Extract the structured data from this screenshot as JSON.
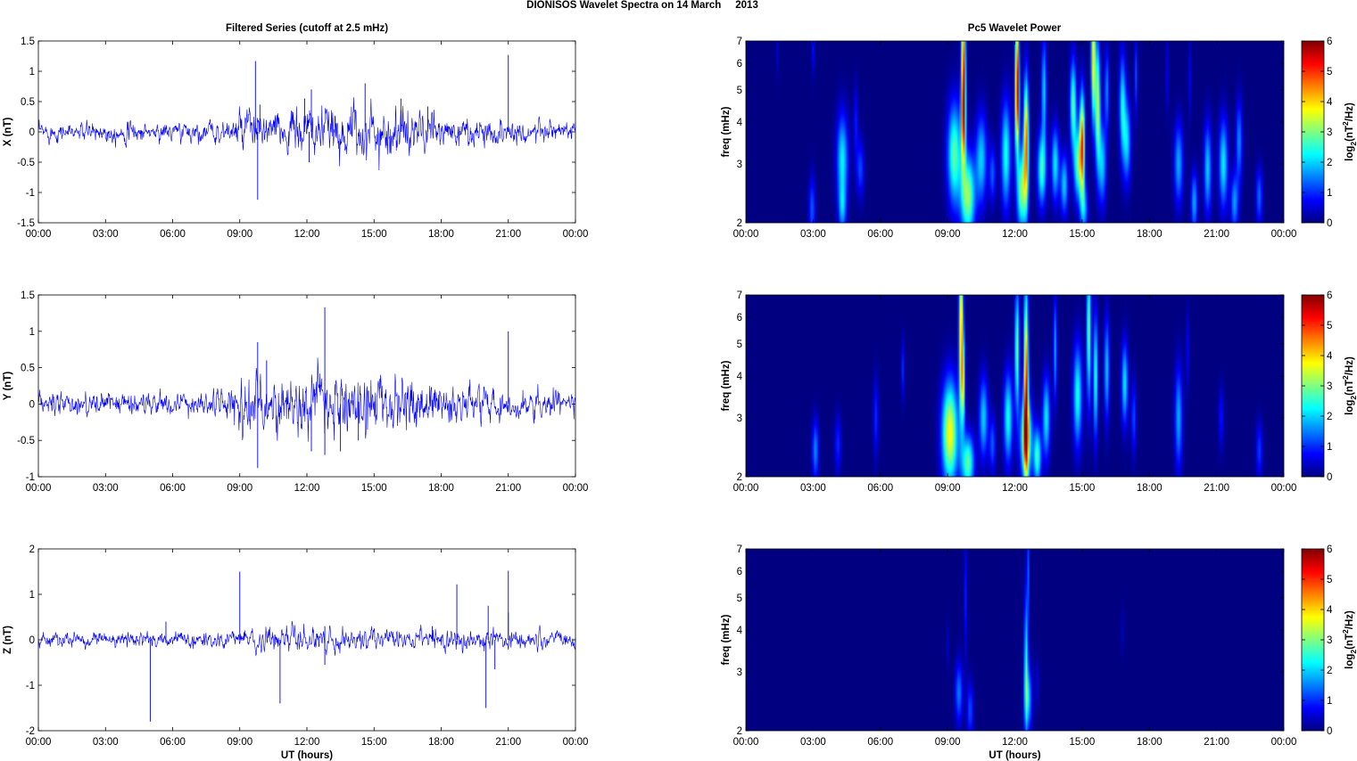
{
  "figure": {
    "title": "DIONISOS Wavelet Spectra on 14 March     2013",
    "left_title": "Filtered Series (cutoff at 2.5 mHz)",
    "right_title": "Pc5 Wavelet Power",
    "x_label": "UT (hours)",
    "freq_label": "freq (mHz)",
    "colorbar_label": "log2(nT2/Hz)"
  },
  "chart_data": [
    {
      "type": "line",
      "panel": "X",
      "ylabel": "X (nT)",
      "xlim": [
        0,
        24
      ],
      "ylim": [
        -1.5,
        1.5
      ],
      "x_ticks": [
        0,
        3,
        6,
        9,
        12,
        15,
        18,
        21,
        24
      ],
      "x_tick_labels": [
        "00:00",
        "03:00",
        "06:00",
        "09:00",
        "12:00",
        "15:00",
        "18:00",
        "21:00",
        "00:00"
      ],
      "y_ticks": [
        -1.5,
        -1,
        -0.5,
        0,
        0.5,
        1,
        1.5
      ],
      "y_tick_labels": [
        "-1.5",
        "-1",
        "-0.5",
        "0",
        "0.5",
        "1",
        "1.5"
      ],
      "color": "#0000ff",
      "noise_envelope": [
        [
          0,
          0.1
        ],
        [
          2,
          0.1
        ],
        [
          3,
          0.12
        ],
        [
          6,
          0.1
        ],
        [
          8.5,
          0.12
        ],
        [
          9.3,
          0.25
        ],
        [
          10.3,
          0.22
        ],
        [
          11,
          0.2
        ],
        [
          12,
          0.28
        ],
        [
          13,
          0.26
        ],
        [
          14.5,
          0.3
        ],
        [
          16.5,
          0.28
        ],
        [
          18,
          0.16
        ],
        [
          21,
          0.14
        ],
        [
          24,
          0.12
        ]
      ],
      "spikes": [
        [
          9.7,
          1.17
        ],
        [
          9.8,
          -1.12
        ],
        [
          9.9,
          0.45
        ],
        [
          12.2,
          0.7
        ],
        [
          12.1,
          -0.5
        ],
        [
          14.6,
          0.8
        ],
        [
          16.2,
          0.55
        ],
        [
          17.4,
          0.42
        ],
        [
          21.0,
          1.27
        ],
        [
          11.9,
          0.55
        ]
      ]
    },
    {
      "type": "line",
      "panel": "Y",
      "ylabel": "Y (nT)",
      "xlim": [
        0,
        24
      ],
      "ylim": [
        -1,
        1.5
      ],
      "x_ticks": [
        0,
        3,
        6,
        9,
        12,
        15,
        18,
        21,
        24
      ],
      "x_tick_labels": [
        "00:00",
        "03:00",
        "06:00",
        "09:00",
        "12:00",
        "15:00",
        "18:00",
        "21:00",
        "00:00"
      ],
      "y_ticks": [
        -1,
        -0.5,
        0,
        0.5,
        1,
        1.5
      ],
      "y_tick_labels": [
        "-1",
        "-0.5",
        "0",
        "0.5",
        "1",
        "1.5"
      ],
      "color": "#0000ff",
      "noise_envelope": [
        [
          0,
          0.1
        ],
        [
          2,
          0.1
        ],
        [
          3,
          0.12
        ],
        [
          6,
          0.1
        ],
        [
          8.5,
          0.14
        ],
        [
          9.3,
          0.3
        ],
        [
          10,
          0.26
        ],
        [
          11,
          0.24
        ],
        [
          12,
          0.3
        ],
        [
          13,
          0.28
        ],
        [
          14.5,
          0.28
        ],
        [
          16.5,
          0.26
        ],
        [
          18,
          0.18
        ],
        [
          21,
          0.14
        ],
        [
          24,
          0.12
        ]
      ],
      "spikes": [
        [
          9.8,
          0.85
        ],
        [
          9.8,
          -0.88
        ],
        [
          12.8,
          1.33
        ],
        [
          12.8,
          -0.7
        ],
        [
          12.2,
          -0.65
        ],
        [
          13.5,
          -0.65
        ],
        [
          14.3,
          -0.5
        ],
        [
          21.0,
          1.0
        ],
        [
          10.2,
          0.6
        ]
      ]
    },
    {
      "type": "line",
      "panel": "Z",
      "ylabel": "Z (nT)",
      "xlim": [
        0,
        24
      ],
      "ylim": [
        -2,
        2
      ],
      "x_ticks": [
        0,
        3,
        6,
        9,
        12,
        15,
        18,
        21,
        24
      ],
      "x_tick_labels": [
        "00:00",
        "03:00",
        "06:00",
        "09:00",
        "12:00",
        "15:00",
        "18:00",
        "21:00",
        "00:00"
      ],
      "y_ticks": [
        -2,
        -1,
        0,
        1,
        2
      ],
      "y_tick_labels": [
        "-2",
        "-1",
        "0",
        "1",
        "2"
      ],
      "xlabel": "UT (hours)",
      "color": "#0000ff",
      "noise_envelope": [
        [
          0,
          0.1
        ],
        [
          4,
          0.1
        ],
        [
          6,
          0.12
        ],
        [
          9,
          0.12
        ],
        [
          10,
          0.16
        ],
        [
          12,
          0.16
        ],
        [
          15,
          0.14
        ],
        [
          18,
          0.16
        ],
        [
          21,
          0.14
        ],
        [
          24,
          0.12
        ]
      ],
      "spikes": [
        [
          5.0,
          -1.8
        ],
        [
          5.7,
          0.4
        ],
        [
          9.0,
          1.5
        ],
        [
          10.8,
          -1.4
        ],
        [
          12.8,
          -0.55
        ],
        [
          12.8,
          0.3
        ],
        [
          18.7,
          1.22
        ],
        [
          20.0,
          -1.5
        ],
        [
          20.1,
          0.75
        ],
        [
          20.4,
          -0.65
        ],
        [
          21.0,
          1.52
        ],
        [
          21.0,
          0.6
        ],
        [
          17.6,
          0.3
        ]
      ]
    },
    {
      "type": "heatmap",
      "panel": "X wavelet",
      "ylabel": "freq (mHz)",
      "yscale": "log",
      "xlim": [
        0,
        24
      ],
      "ylim": [
        2,
        7
      ],
      "clim": [
        0,
        6
      ],
      "colormap": "jet",
      "x_ticks": [
        0,
        3,
        6,
        9,
        12,
        15,
        18,
        21,
        24
      ],
      "x_tick_labels": [
        "00:00",
        "03:00",
        "06:00",
        "09:00",
        "12:00",
        "15:00",
        "18:00",
        "21:00",
        "00:00"
      ],
      "y_ticks": [
        2,
        3,
        4,
        5,
        6,
        7
      ],
      "y_tick_labels": [
        "2",
        "3",
        "4",
        "5",
        "6",
        "7"
      ],
      "colorbar_ticks": [
        0,
        1,
        2,
        3,
        4,
        5,
        6
      ],
      "blobs": [
        [
          2.95,
          2.2,
          0.1,
          0.16,
          1.3
        ],
        [
          3.0,
          6.6,
          0.05,
          0.12,
          0.8
        ],
        [
          1.4,
          6.4,
          0.04,
          0.12,
          0.5
        ],
        [
          4.3,
          3.1,
          0.18,
          0.22,
          2.2
        ],
        [
          4.3,
          2.2,
          0.12,
          0.12,
          1.5
        ],
        [
          4.9,
          4.0,
          0.07,
          0.18,
          0.9
        ],
        [
          5.1,
          2.9,
          0.12,
          0.14,
          1.2
        ],
        [
          9.3,
          3.2,
          0.22,
          0.25,
          2.8
        ],
        [
          9.7,
          6.0,
          0.07,
          0.35,
          4.6
        ],
        [
          9.7,
          4.0,
          0.07,
          0.22,
          3.2
        ],
        [
          9.9,
          2.4,
          0.22,
          0.2,
          3.2
        ],
        [
          10.5,
          3.1,
          0.18,
          0.22,
          2.0
        ],
        [
          11.0,
          2.8,
          0.1,
          0.14,
          1.3
        ],
        [
          11.6,
          3.2,
          0.15,
          0.26,
          2.4
        ],
        [
          12.1,
          6.0,
          0.06,
          0.35,
          3.6
        ],
        [
          12.1,
          4.5,
          0.07,
          0.25,
          3.0
        ],
        [
          12.5,
          3.5,
          0.08,
          0.3,
          4.6
        ],
        [
          12.3,
          2.5,
          0.15,
          0.2,
          3.0
        ],
        [
          13.2,
          2.9,
          0.14,
          0.18,
          2.6
        ],
        [
          13.3,
          5.0,
          0.08,
          0.25,
          2.0
        ],
        [
          13.8,
          3.0,
          0.12,
          0.18,
          2.2
        ],
        [
          14.2,
          2.6,
          0.12,
          0.15,
          2.0
        ],
        [
          14.6,
          4.5,
          0.1,
          0.22,
          2.8
        ],
        [
          14.8,
          3.0,
          0.12,
          0.18,
          2.6
        ],
        [
          15.0,
          3.4,
          0.08,
          0.25,
          4.8
        ],
        [
          15.1,
          2.2,
          0.12,
          0.12,
          1.6
        ],
        [
          15.5,
          6.2,
          0.07,
          0.3,
          4.0
        ],
        [
          15.7,
          4.5,
          0.08,
          0.3,
          3.4
        ],
        [
          15.9,
          3.0,
          0.12,
          0.2,
          2.0
        ],
        [
          16.1,
          5.0,
          0.07,
          0.2,
          1.6
        ],
        [
          16.8,
          4.5,
          0.1,
          0.25,
          2.2
        ],
        [
          17.0,
          3.5,
          0.12,
          0.2,
          2.0
        ],
        [
          17.4,
          5.5,
          0.05,
          0.2,
          1.2
        ],
        [
          18.8,
          5.6,
          0.05,
          0.2,
          0.7
        ],
        [
          19.8,
          5.4,
          0.05,
          0.2,
          0.7
        ],
        [
          19.3,
          3.0,
          0.14,
          0.2,
          1.8
        ],
        [
          20.0,
          2.3,
          0.1,
          0.15,
          1.8
        ],
        [
          20.6,
          2.9,
          0.12,
          0.22,
          2.0
        ],
        [
          21.3,
          3.0,
          0.14,
          0.22,
          2.2
        ],
        [
          21.8,
          2.3,
          0.12,
          0.14,
          1.7
        ],
        [
          22.0,
          3.5,
          0.1,
          0.2,
          1.6
        ],
        [
          22.9,
          2.4,
          0.1,
          0.14,
          1.4
        ]
      ]
    },
    {
      "type": "heatmap",
      "panel": "Y wavelet",
      "ylabel": "freq (mHz)",
      "yscale": "log",
      "xlim": [
        0,
        24
      ],
      "ylim": [
        2,
        7
      ],
      "clim": [
        0,
        6
      ],
      "colormap": "jet",
      "x_ticks": [
        0,
        3,
        6,
        9,
        12,
        15,
        18,
        21,
        24
      ],
      "x_tick_labels": [
        "00:00",
        "03:00",
        "06:00",
        "09:00",
        "12:00",
        "15:00",
        "18:00",
        "21:00",
        "00:00"
      ],
      "y_ticks": [
        2,
        3,
        4,
        5,
        6,
        7
      ],
      "y_tick_labels": [
        "2",
        "3",
        "4",
        "5",
        "6",
        "7"
      ],
      "colorbar_ticks": [
        0,
        1,
        2,
        3,
        4,
        5,
        6
      ],
      "blobs": [
        [
          3.1,
          2.4,
          0.1,
          0.15,
          1.6
        ],
        [
          4.1,
          2.5,
          0.1,
          0.14,
          1.0
        ],
        [
          5.8,
          3.0,
          0.08,
          0.2,
          1.0
        ],
        [
          7.0,
          4.2,
          0.05,
          0.15,
          1.0
        ],
        [
          9.1,
          2.7,
          0.25,
          0.25,
          3.8
        ],
        [
          9.6,
          5.5,
          0.07,
          0.4,
          4.4
        ],
        [
          9.7,
          3.8,
          0.06,
          0.2,
          2.8
        ],
        [
          9.9,
          2.2,
          0.2,
          0.14,
          2.8
        ],
        [
          10.6,
          3.0,
          0.14,
          0.2,
          2.0
        ],
        [
          11.0,
          2.5,
          0.1,
          0.14,
          1.3
        ],
        [
          11.7,
          3.0,
          0.14,
          0.22,
          2.4
        ],
        [
          12.1,
          4.8,
          0.07,
          0.3,
          3.0
        ],
        [
          12.5,
          3.8,
          0.07,
          0.45,
          5.0
        ],
        [
          12.5,
          2.6,
          0.18,
          0.2,
          3.6
        ],
        [
          13.0,
          2.3,
          0.12,
          0.14,
          2.6
        ],
        [
          13.4,
          3.0,
          0.12,
          0.2,
          2.2
        ],
        [
          13.8,
          4.8,
          0.06,
          0.25,
          1.8
        ],
        [
          14.8,
          3.5,
          0.14,
          0.25,
          2.4
        ],
        [
          15.3,
          5.5,
          0.07,
          0.35,
          3.0
        ],
        [
          15.6,
          4.0,
          0.07,
          0.3,
          2.6
        ],
        [
          16.1,
          4.2,
          0.08,
          0.25,
          2.0
        ],
        [
          16.9,
          3.8,
          0.1,
          0.2,
          2.2
        ],
        [
          17.3,
          3.0,
          0.08,
          0.18,
          1.2
        ],
        [
          19.3,
          3.0,
          0.12,
          0.25,
          1.8
        ],
        [
          19.7,
          4.8,
          0.05,
          0.2,
          0.8
        ],
        [
          21.2,
          3.0,
          0.08,
          0.15,
          0.9
        ],
        [
          22.9,
          2.4,
          0.1,
          0.14,
          1.1
        ]
      ]
    },
    {
      "type": "heatmap",
      "panel": "Z wavelet",
      "ylabel": "freq (mHz)",
      "yscale": "log",
      "xlim": [
        0,
        24
      ],
      "ylim": [
        2,
        7
      ],
      "clim": [
        0,
        6
      ],
      "colormap": "jet",
      "x_ticks": [
        0,
        3,
        6,
        9,
        12,
        15,
        18,
        21,
        24
      ],
      "x_tick_labels": [
        "00:00",
        "03:00",
        "06:00",
        "09:00",
        "12:00",
        "15:00",
        "18:00",
        "21:00",
        "00:00"
      ],
      "y_ticks": [
        2,
        3,
        4,
        5,
        6,
        7
      ],
      "y_tick_labels": [
        "2",
        "3",
        "4",
        "5",
        "6",
        "7"
      ],
      "xlabel": "UT (hours)",
      "colorbar_ticks": [
        0,
        1,
        2,
        3,
        4,
        5,
        6
      ],
      "blobs": [
        [
          9.5,
          2.6,
          0.12,
          0.15,
          1.5
        ],
        [
          9.8,
          5.0,
          0.05,
          0.3,
          0.9
        ],
        [
          10.0,
          2.3,
          0.1,
          0.14,
          1.2
        ],
        [
          12.5,
          3.2,
          0.06,
          0.35,
          2.3
        ],
        [
          12.6,
          2.5,
          0.12,
          0.16,
          1.8
        ],
        [
          12.6,
          6.0,
          0.04,
          0.25,
          1.2
        ],
        [
          13.0,
          2.8,
          0.06,
          0.12,
          0.5
        ],
        [
          16.8,
          4.0,
          0.04,
          0.12,
          0.5
        ],
        [
          9.0,
          3.6,
          0.05,
          0.12,
          0.4
        ]
      ]
    }
  ]
}
